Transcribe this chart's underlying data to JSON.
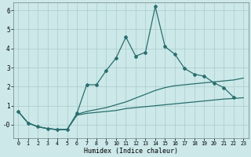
{
  "xlabel": "Humidex (Indice chaleur)",
  "bg_color": "#cce8e8",
  "grid_color": "#aacccc",
  "line_color": "#2a6e6e",
  "xlim": [
    -0.5,
    23.5
  ],
  "ylim": [
    -0.7,
    6.4
  ],
  "x_ticks": [
    0,
    1,
    2,
    3,
    4,
    5,
    6,
    7,
    8,
    9,
    10,
    11,
    12,
    13,
    14,
    15,
    16,
    17,
    18,
    19,
    20,
    21,
    22,
    23
  ],
  "y_ticks": [
    0,
    1,
    2,
    3,
    4,
    5,
    6
  ],
  "y_tick_labels": [
    "-0",
    "1",
    "2",
    "3",
    "4",
    "5",
    "6"
  ],
  "series3_x": [
    0,
    1,
    2,
    3,
    4,
    5,
    6,
    7,
    8,
    9,
    10,
    11,
    12,
    13,
    14,
    15,
    16,
    17,
    18,
    19,
    20,
    21,
    22
  ],
  "series3_y": [
    0.7,
    0.1,
    -0.1,
    -0.2,
    -0.25,
    -0.25,
    0.6,
    2.1,
    2.1,
    2.85,
    3.5,
    4.6,
    3.6,
    3.8,
    6.2,
    4.1,
    3.7,
    2.95,
    2.65,
    2.55,
    2.2,
    1.95,
    1.45
  ],
  "series2_x": [
    0,
    1,
    2,
    3,
    4,
    5,
    6,
    7,
    8,
    9,
    10,
    11,
    12,
    13,
    14,
    15,
    16,
    17,
    18,
    19,
    20,
    21,
    22,
    23
  ],
  "series2_y": [
    0.7,
    0.1,
    -0.1,
    -0.2,
    -0.25,
    -0.25,
    0.55,
    0.7,
    0.8,
    0.9,
    1.05,
    1.2,
    1.4,
    1.6,
    1.8,
    1.95,
    2.05,
    2.1,
    2.15,
    2.2,
    2.25,
    2.3,
    2.35,
    2.45
  ],
  "series1_x": [
    0,
    1,
    2,
    3,
    4,
    5,
    6,
    7,
    8,
    9,
    10,
    11,
    12,
    13,
    14,
    15,
    16,
    17,
    18,
    19,
    20,
    21,
    22,
    23
  ],
  "series1_y": [
    0.7,
    0.1,
    -0.1,
    -0.2,
    -0.25,
    -0.25,
    0.5,
    0.6,
    0.65,
    0.7,
    0.75,
    0.85,
    0.9,
    0.95,
    1.0,
    1.05,
    1.1,
    1.15,
    1.2,
    1.25,
    1.3,
    1.35,
    1.38,
    1.42
  ]
}
